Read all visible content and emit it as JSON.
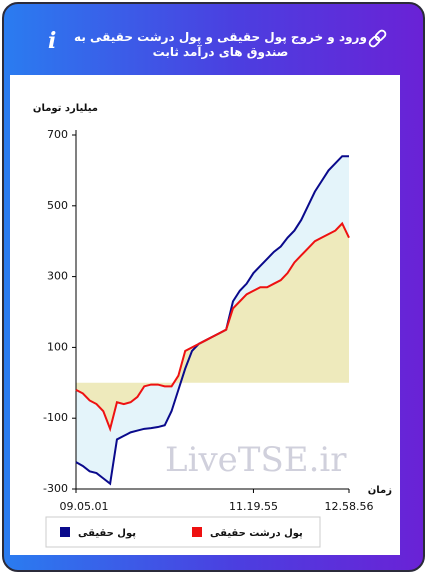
{
  "header": {
    "title": "ورود و خروج پول حقیقی و پول درشت حقیقی به صندوق های درآمد ثابت"
  },
  "chart_data": {
    "type": "line",
    "ylabel": "میلیارد تومان",
    "xlabel": "زمان",
    "watermark": "LiveTSE.ir",
    "categories": [
      "09.05.01",
      null,
      null,
      null,
      null,
      null,
      null,
      null,
      null,
      null,
      null,
      null,
      null,
      null,
      null,
      null,
      null,
      null,
      null,
      null,
      null,
      null,
      null,
      null,
      null,
      null,
      "11.19.55",
      null,
      null,
      null,
      null,
      null,
      null,
      null,
      null,
      null,
      null,
      null,
      null,
      null,
      "12.58.56"
    ],
    "series": [
      {
        "name": "پول حقیقی",
        "color": "#0a0a8c",
        "values": [
          -224,
          -235,
          -250,
          -255,
          -270,
          -285,
          -160,
          -150,
          -140,
          -135,
          -130,
          -128,
          -125,
          -120,
          -80,
          -20,
          40,
          90,
          110,
          120,
          130,
          140,
          150,
          230,
          260,
          280,
          310,
          330,
          350,
          370,
          385,
          410,
          430,
          460,
          500,
          540,
          570,
          600,
          620,
          640,
          640
        ]
      },
      {
        "name": "پول درشت حقیقی",
        "color": "#ee1111",
        "values": [
          -20,
          -30,
          -50,
          -60,
          -80,
          -130,
          -55,
          -60,
          -55,
          -40,
          -10,
          -5,
          -5,
          -10,
          -10,
          20,
          90,
          100,
          110,
          120,
          130,
          140,
          150,
          210,
          230,
          250,
          260,
          270,
          270,
          280,
          290,
          310,
          340,
          360,
          380,
          400,
          410,
          420,
          430,
          450,
          410
        ]
      }
    ],
    "ylim": [
      -300,
      700
    ],
    "yticks": [
      -300,
      -100,
      100,
      300,
      500,
      700
    ],
    "fill_colors": [
      "#e4f4fa",
      "#eeeabc"
    ]
  }
}
